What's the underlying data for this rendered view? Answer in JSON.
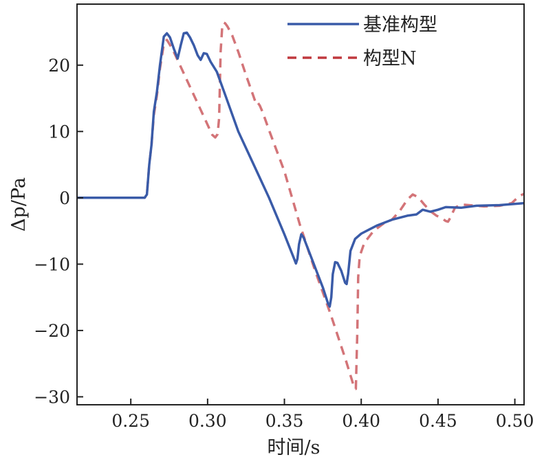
{
  "chart_data": {
    "type": "line",
    "xlabel": "时间/s",
    "ylabel": "Δp/Pa",
    "xlim": [
      0.215,
      0.506
    ],
    "ylim": [
      -31.2,
      29.2
    ],
    "xticks": [
      0.25,
      0.3,
      0.35,
      0.4,
      0.45,
      0.5
    ],
    "xtick_labels": [
      "0.25",
      "0.30",
      "0.35",
      "0.40",
      "0.45",
      "0.50"
    ],
    "yticks": [
      20,
      10,
      0,
      -10,
      -20,
      -30
    ],
    "ytick_labels": [
      "20",
      "10",
      "0",
      "−10",
      "−20",
      "−30"
    ],
    "grid": false,
    "legend_position": "top-right",
    "series": [
      {
        "name": "基准构型",
        "color": "#3a5ba8",
        "style": "solid",
        "points": [
          [
            0.215,
            0
          ],
          [
            0.259,
            0
          ],
          [
            0.2605,
            0.5
          ],
          [
            0.262,
            5
          ],
          [
            0.2635,
            8
          ],
          [
            0.265,
            13
          ],
          [
            0.267,
            16
          ],
          [
            0.269,
            20
          ],
          [
            0.2715,
            24.3
          ],
          [
            0.2735,
            24.8
          ],
          [
            0.2755,
            24.2
          ],
          [
            0.278,
            22.5
          ],
          [
            0.2805,
            21
          ],
          [
            0.2825,
            23
          ],
          [
            0.2845,
            24.8
          ],
          [
            0.2865,
            24.9
          ],
          [
            0.2885,
            24.2
          ],
          [
            0.291,
            23
          ],
          [
            0.2935,
            21.5
          ],
          [
            0.2955,
            20.8
          ],
          [
            0.2975,
            21.8
          ],
          [
            0.2995,
            21.7
          ],
          [
            0.302,
            20.5
          ],
          [
            0.306,
            19
          ],
          [
            0.3115,
            15.5
          ],
          [
            0.32,
            10
          ],
          [
            0.33,
            5
          ],
          [
            0.34,
            0
          ],
          [
            0.35,
            -5.5
          ],
          [
            0.356,
            -9
          ],
          [
            0.3575,
            -9.9
          ],
          [
            0.3585,
            -9.2
          ],
          [
            0.3595,
            -7
          ],
          [
            0.361,
            -5.5
          ],
          [
            0.3625,
            -6
          ],
          [
            0.365,
            -7.5
          ],
          [
            0.37,
            -10.5
          ],
          [
            0.375,
            -13.5
          ],
          [
            0.3785,
            -16
          ],
          [
            0.3795,
            -16.4
          ],
          [
            0.3805,
            -15
          ],
          [
            0.3815,
            -11.5
          ],
          [
            0.383,
            -9.7
          ],
          [
            0.3845,
            -9.8
          ],
          [
            0.387,
            -11
          ],
          [
            0.3895,
            -12.8
          ],
          [
            0.3905,
            -13
          ],
          [
            0.3915,
            -11.5
          ],
          [
            0.393,
            -8
          ],
          [
            0.396,
            -6.2
          ],
          [
            0.4,
            -5.4
          ],
          [
            0.405,
            -4.8
          ],
          [
            0.41,
            -4.2
          ],
          [
            0.42,
            -3.3
          ],
          [
            0.43,
            -2.7
          ],
          [
            0.436,
            -2.5
          ],
          [
            0.44,
            -1.8
          ],
          [
            0.445,
            -2.1
          ],
          [
            0.45,
            -1.8
          ],
          [
            0.455,
            -1.4
          ],
          [
            0.465,
            -1.5
          ],
          [
            0.475,
            -1.2
          ],
          [
            0.49,
            -1.1
          ],
          [
            0.506,
            -0.8
          ]
        ]
      },
      {
        "name": "构型N",
        "color": "#c0393e",
        "style": "dashed",
        "points": [
          [
            0.215,
            0
          ],
          [
            0.259,
            0
          ],
          [
            0.2605,
            0.5
          ],
          [
            0.262,
            5
          ],
          [
            0.2635,
            8
          ],
          [
            0.265,
            12.5
          ],
          [
            0.267,
            15.5
          ],
          [
            0.269,
            19.5
          ],
          [
            0.2715,
            23.2
          ],
          [
            0.2735,
            23.8
          ],
          [
            0.277,
            22.5
          ],
          [
            0.282,
            20
          ],
          [
            0.288,
            17
          ],
          [
            0.294,
            14
          ],
          [
            0.3,
            11
          ],
          [
            0.303,
            9.5
          ],
          [
            0.305,
            9.1
          ],
          [
            0.3065,
            9.6
          ],
          [
            0.3075,
            12
          ],
          [
            0.3085,
            22
          ],
          [
            0.3095,
            25.8
          ],
          [
            0.3105,
            26.4
          ],
          [
            0.3115,
            26.3
          ],
          [
            0.313,
            25.8
          ],
          [
            0.316,
            24.5
          ],
          [
            0.32,
            22
          ],
          [
            0.325,
            18.5
          ],
          [
            0.33,
            15.2
          ],
          [
            0.3315,
            14.2
          ],
          [
            0.3325,
            14.4
          ],
          [
            0.334,
            13.9
          ],
          [
            0.336,
            12.8
          ],
          [
            0.34,
            10.2
          ],
          [
            0.35,
            4
          ],
          [
            0.36,
            -4
          ],
          [
            0.37,
            -11
          ],
          [
            0.38,
            -17.5
          ],
          [
            0.39,
            -24.5
          ],
          [
            0.394,
            -27.5
          ],
          [
            0.3955,
            -28.7
          ],
          [
            0.3965,
            -28.8
          ],
          [
            0.3975,
            -20
          ],
          [
            0.398,
            -12
          ],
          [
            0.399,
            -8.8
          ],
          [
            0.402,
            -6.8
          ],
          [
            0.408,
            -5
          ],
          [
            0.415,
            -3.8
          ],
          [
            0.42,
            -3.3
          ],
          [
            0.425,
            -2
          ],
          [
            0.43,
            -0.3
          ],
          [
            0.4335,
            0.5
          ],
          [
            0.437,
            0.1
          ],
          [
            0.441,
            -1
          ],
          [
            0.445,
            -2
          ],
          [
            0.449,
            -2.7
          ],
          [
            0.452,
            -3
          ],
          [
            0.455,
            -3.5
          ],
          [
            0.4565,
            -3.6
          ],
          [
            0.458,
            -3
          ],
          [
            0.461,
            -1.5
          ],
          [
            0.465,
            -1
          ],
          [
            0.47,
            -1.1
          ],
          [
            0.48,
            -1.3
          ],
          [
            0.49,
            -1.2
          ],
          [
            0.498,
            -0.8
          ],
          [
            0.503,
            0.3
          ],
          [
            0.506,
            0.6
          ]
        ]
      }
    ]
  }
}
